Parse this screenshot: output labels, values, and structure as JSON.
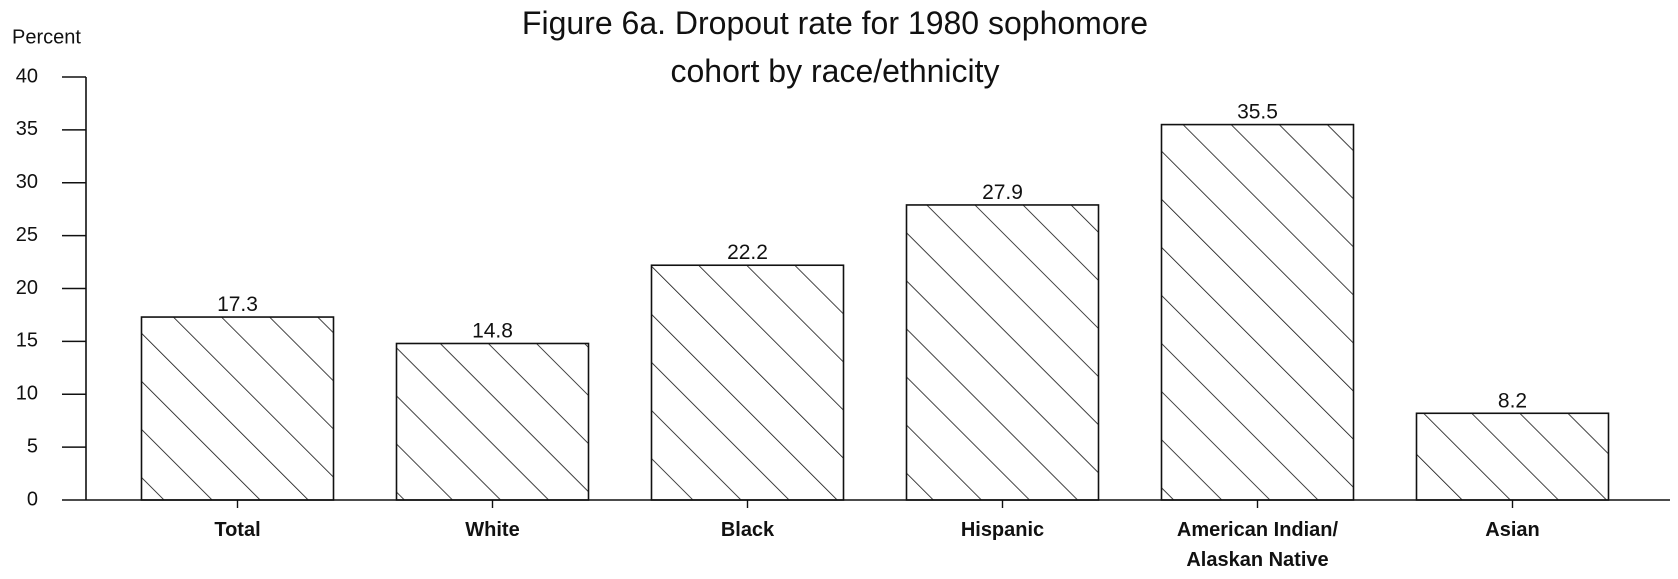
{
  "chart_data": {
    "type": "bar",
    "title": [
      "Figure 6a.  Dropout rate for 1980 sophomore",
      "cohort by race/ethnicity"
    ],
    "y_label": "Percent",
    "categories": [
      [
        "Total"
      ],
      [
        "White"
      ],
      [
        "Black"
      ],
      [
        "Hispanic"
      ],
      [
        "American Indian/",
        "Alaskan Native"
      ],
      [
        "Asian"
      ]
    ],
    "values": [
      17.3,
      14.8,
      22.2,
      27.9,
      35.5,
      8.2
    ],
    "color": "#111111",
    "hatch": true,
    "ylim": [
      0,
      40
    ],
    "yticks": [
      0,
      5,
      10,
      15,
      20,
      25,
      30,
      35,
      40
    ],
    "grid": false
  }
}
